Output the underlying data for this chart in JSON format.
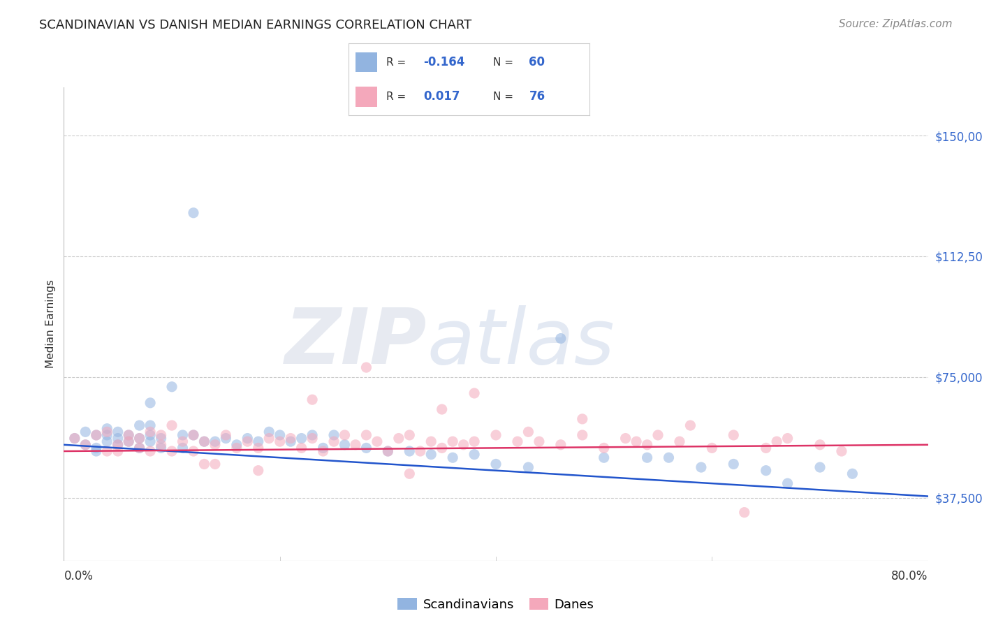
{
  "title": "SCANDINAVIAN VS DANISH MEDIAN EARNINGS CORRELATION CHART",
  "source": "Source: ZipAtlas.com",
  "ylabel": "Median Earnings",
  "yticks": [
    37500,
    75000,
    112500,
    150000
  ],
  "ytick_labels": [
    "$37,500",
    "$75,000",
    "$112,500",
    "$150,000"
  ],
  "xlim": [
    0.0,
    0.8
  ],
  "ylim": [
    18000,
    165000
  ],
  "blue_color": "#92b4e0",
  "pink_color": "#f4a8bb",
  "blue_line_color": "#2255cc",
  "pink_line_color": "#dd3366",
  "legend_R_blue": "-0.164",
  "legend_N_blue": "60",
  "legend_R_pink": "0.017",
  "legend_N_pink": "76",
  "legend_label_blue": "Scandinavians",
  "legend_label_pink": "Danes",
  "accent_color": "#3366cc",
  "background_color": "#ffffff",
  "grid_color": "#cccccc",
  "blue_scatter_x": [
    0.01,
    0.02,
    0.02,
    0.03,
    0.03,
    0.03,
    0.04,
    0.04,
    0.04,
    0.05,
    0.05,
    0.05,
    0.06,
    0.06,
    0.07,
    0.07,
    0.07,
    0.08,
    0.08,
    0.08,
    0.09,
    0.09,
    0.1,
    0.11,
    0.11,
    0.12,
    0.13,
    0.14,
    0.15,
    0.16,
    0.17,
    0.18,
    0.19,
    0.2,
    0.21,
    0.22,
    0.23,
    0.24,
    0.26,
    0.28,
    0.3,
    0.32,
    0.34,
    0.36,
    0.38,
    0.4,
    0.43,
    0.46,
    0.5,
    0.54,
    0.56,
    0.59,
    0.62,
    0.65,
    0.67,
    0.7,
    0.73,
    0.12,
    0.08,
    0.25
  ],
  "blue_scatter_y": [
    56000,
    54000,
    58000,
    52000,
    57000,
    53000,
    55000,
    57000,
    59000,
    54000,
    56000,
    58000,
    55000,
    57000,
    53000,
    56000,
    60000,
    55000,
    57000,
    60000,
    56000,
    53000,
    72000,
    57000,
    53000,
    57000,
    55000,
    55000,
    56000,
    54000,
    56000,
    55000,
    58000,
    57000,
    55000,
    56000,
    57000,
    53000,
    54000,
    53000,
    52000,
    52000,
    51000,
    50000,
    51000,
    48000,
    47000,
    87000,
    50000,
    50000,
    50000,
    47000,
    48000,
    46000,
    42000,
    47000,
    45000,
    126000,
    67000,
    57000
  ],
  "pink_scatter_x": [
    0.01,
    0.02,
    0.03,
    0.04,
    0.04,
    0.05,
    0.05,
    0.06,
    0.06,
    0.07,
    0.07,
    0.08,
    0.08,
    0.09,
    0.09,
    0.1,
    0.1,
    0.11,
    0.12,
    0.12,
    0.13,
    0.13,
    0.14,
    0.15,
    0.16,
    0.17,
    0.18,
    0.19,
    0.2,
    0.21,
    0.22,
    0.23,
    0.24,
    0.25,
    0.26,
    0.27,
    0.28,
    0.29,
    0.3,
    0.31,
    0.32,
    0.33,
    0.34,
    0.35,
    0.36,
    0.37,
    0.38,
    0.4,
    0.42,
    0.44,
    0.46,
    0.48,
    0.5,
    0.52,
    0.54,
    0.55,
    0.57,
    0.6,
    0.62,
    0.65,
    0.67,
    0.7,
    0.72,
    0.35,
    0.38,
    0.43,
    0.48,
    0.58,
    0.63,
    0.66,
    0.53,
    0.28,
    0.23,
    0.32,
    0.18,
    0.14
  ],
  "pink_scatter_y": [
    56000,
    54000,
    57000,
    52000,
    58000,
    54000,
    52000,
    55000,
    57000,
    56000,
    53000,
    52000,
    58000,
    57000,
    54000,
    60000,
    52000,
    55000,
    57000,
    52000,
    55000,
    48000,
    54000,
    57000,
    53000,
    55000,
    53000,
    56000,
    55000,
    56000,
    53000,
    56000,
    52000,
    55000,
    57000,
    54000,
    57000,
    55000,
    52000,
    56000,
    57000,
    52000,
    55000,
    53000,
    55000,
    54000,
    55000,
    57000,
    55000,
    55000,
    54000,
    57000,
    53000,
    56000,
    54000,
    57000,
    55000,
    53000,
    57000,
    53000,
    56000,
    54000,
    52000,
    65000,
    70000,
    58000,
    62000,
    60000,
    33000,
    55000,
    55000,
    78000,
    68000,
    45000,
    46000,
    48000
  ],
  "blue_trend": [
    54000,
    38000
  ],
  "pink_trend": [
    52000,
    54000
  ],
  "scatter_size": 120,
  "scatter_alpha": 0.55,
  "title_fontsize": 13,
  "source_fontsize": 11,
  "ytick_fontsize": 12,
  "ylabel_fontsize": 11,
  "title_color": "#222222",
  "source_color": "#888888",
  "axis_label_color": "#333333",
  "xtick_labels": [
    "0.0%",
    "80.0%"
  ]
}
